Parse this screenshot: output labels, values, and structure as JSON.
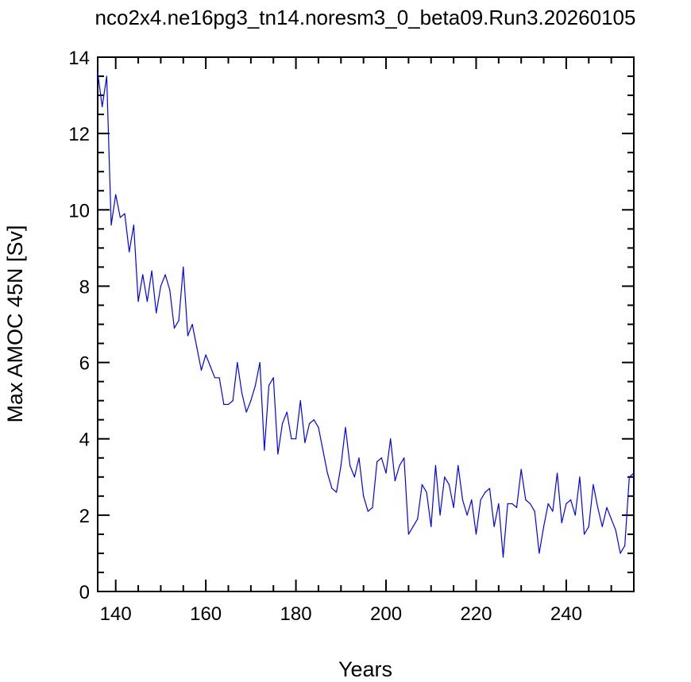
{
  "chart_data": {
    "type": "line",
    "title": "nco2x4.ne16pg3_tn14.noresm3_0_beta09.Run3.20260105",
    "xlabel": "Years",
    "ylabel": "Max AMOC 45N [Sv]",
    "xlim": [
      136,
      255
    ],
    "ylim": [
      0,
      14
    ],
    "x_major_ticks": [
      140,
      160,
      180,
      200,
      220,
      240
    ],
    "x_tick_labels": [
      "140",
      "160",
      "180",
      "200",
      "220",
      "240"
    ],
    "y_major_ticks": [
      0,
      2,
      4,
      6,
      8,
      10,
      12,
      14
    ],
    "y_tick_labels": [
      "0",
      "2",
      "4",
      "6",
      "8",
      "10",
      "12",
      "14"
    ],
    "grid": false,
    "line_color": "#0000ff",
    "series": [
      {
        "x_start": 136,
        "x_step": 1,
        "values": [
          13.6,
          12.7,
          13.5,
          9.6,
          10.4,
          9.8,
          9.9,
          8.9,
          9.6,
          7.6,
          8.3,
          7.6,
          8.4,
          7.3,
          8.0,
          8.3,
          7.9,
          6.9,
          7.1,
          8.5,
          6.7,
          7.0,
          6.4,
          5.8,
          6.2,
          5.9,
          5.6,
          5.6,
          4.9,
          4.9,
          5.0,
          6.0,
          5.2,
          4.7,
          5.0,
          5.4,
          6.0,
          3.7,
          5.4,
          5.6,
          3.6,
          4.4,
          4.7,
          4.0,
          4.0,
          5.0,
          3.9,
          4.4,
          4.5,
          4.3,
          3.7,
          3.1,
          2.7,
          2.6,
          3.3,
          4.3,
          3.3,
          3.0,
          3.5,
          2.5,
          2.1,
          2.2,
          3.4,
          3.5,
          3.1,
          4.0,
          2.9,
          3.3,
          3.5,
          1.5,
          1.7,
          1.9,
          2.8,
          2.6,
          1.7,
          3.3,
          2.0,
          3.0,
          2.8,
          2.2,
          3.3,
          2.4,
          2.0,
          2.4,
          1.5,
          2.4,
          2.6,
          2.7,
          1.7,
          2.3,
          0.9,
          2.3,
          2.3,
          2.2,
          3.2,
          2.4,
          2.3,
          2.1,
          1.0,
          1.7,
          2.3,
          2.1,
          3.1,
          1.8,
          2.3,
          2.4,
          2.0,
          3.0,
          1.5,
          1.7,
          2.8,
          2.2,
          1.7,
          2.2,
          1.9,
          1.6,
          1.0,
          1.2,
          3.0,
          3.1
        ]
      }
    ]
  }
}
